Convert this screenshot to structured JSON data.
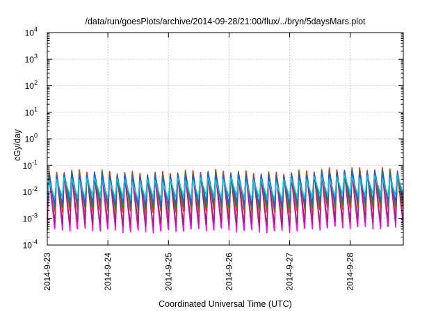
{
  "chart_data": {
    "type": "line",
    "title": "/data/run/goesPlots/archive/2014-09-28/21:00/flux/../bryn/5daysMars.plot",
    "xlabel": "Coordinated Universal Time (UTC)",
    "ylabel": "cGy/day",
    "yscale": "log",
    "ylim": [
      0.0001,
      10000
    ],
    "xlim": [
      "2014-09-23T00:00",
      "2014-09-28T21:00"
    ],
    "grid": true,
    "legend": "none",
    "x_ticks": [
      "2014-9-23",
      "2014-9-24",
      "2014-9-25",
      "2014-9-26",
      "2014-9-27",
      "2014-9-28"
    ],
    "y_ticks": [
      {
        "value": 0.0001,
        "base": "10",
        "exp": "-4"
      },
      {
        "value": 0.001,
        "base": "10",
        "exp": "-3"
      },
      {
        "value": 0.01,
        "base": "10",
        "exp": "-2"
      },
      {
        "value": 0.1,
        "base": "10",
        "exp": "-1"
      },
      {
        "value": 1,
        "base": "10",
        "exp": "0"
      },
      {
        "value": 10,
        "base": "10",
        "exp": "1"
      },
      {
        "value": 100,
        "base": "10",
        "exp": "2"
      },
      {
        "value": 1000,
        "base": "10",
        "exp": "3"
      },
      {
        "value": 10000,
        "base": "10",
        "exp": "4"
      }
    ],
    "orbit_period_hours": 3.0,
    "series": [
      {
        "color": "#ff00ff",
        "peak": 0.045,
        "trough": 0.00035
      },
      {
        "color": "#9a2a6a",
        "peak": 0.05,
        "trough": 0.0006
      },
      {
        "color": "#ff2a2a",
        "peak": 0.06,
        "trough": 0.0018
      },
      {
        "color": "#00a000",
        "peak": 0.05,
        "trough": 0.0025
      },
      {
        "color": "#2a5ae0",
        "peak": 0.045,
        "trough": 0.0035
      },
      {
        "color": "#00c8d8",
        "peak": 0.03,
        "trough": 0.006
      }
    ]
  }
}
